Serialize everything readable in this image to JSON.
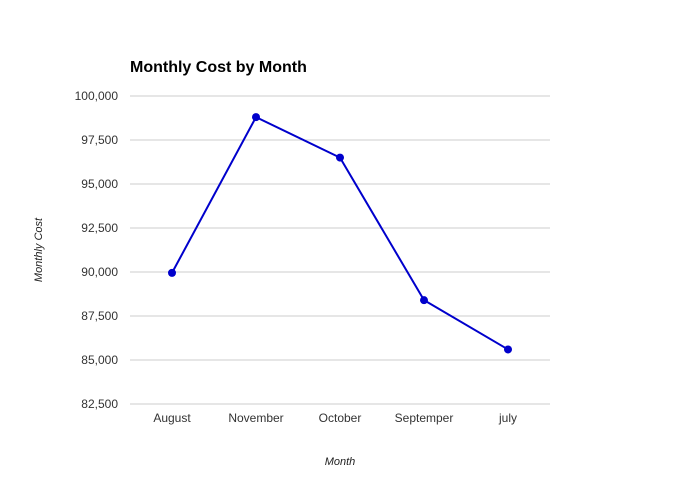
{
  "chart_data": {
    "type": "line",
    "title": "Monthly Cost by Month",
    "xlabel": "Month",
    "ylabel": "Monthly Cost",
    "categories": [
      "August",
      "November",
      "October",
      "Septemper",
      "july"
    ],
    "series": [
      {
        "values": [
          89950,
          98800,
          96500,
          88400,
          85600
        ],
        "color": "#0000cc"
      }
    ],
    "ylim": [
      82500,
      100000
    ],
    "yticks": [
      82500,
      85000,
      87500,
      90000,
      92500,
      95000,
      97500,
      100000
    ],
    "ytick_labels": [
      "82,500",
      "85,000",
      "87,500",
      "90,000",
      "92,500",
      "95,000",
      "97,500",
      "100,000"
    ],
    "grid": true,
    "legend": "none",
    "gridline_color": "#cccccc"
  }
}
